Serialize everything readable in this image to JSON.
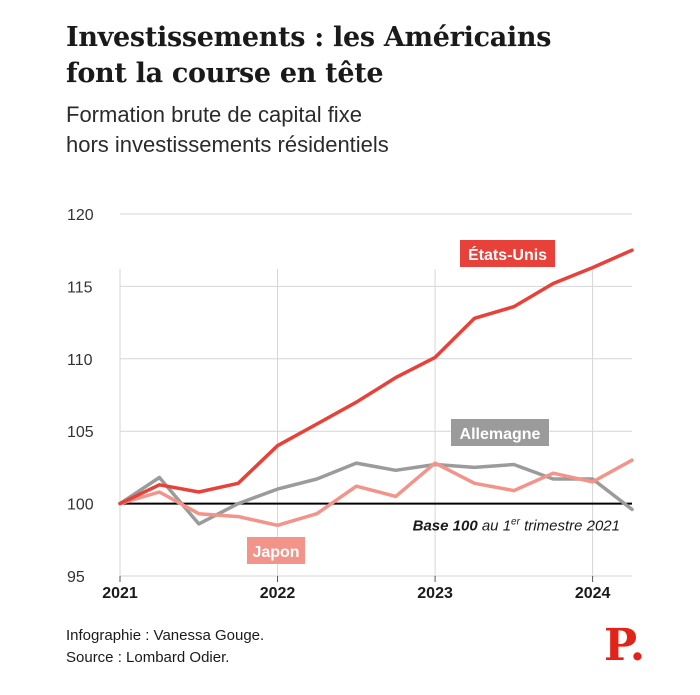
{
  "header": {
    "title_line1": "Investissements : les Américains",
    "title_line2": "font la course en tête",
    "subtitle_line1": "Formation brute de capital fixe",
    "subtitle_line2": "hors investissements résidentiels"
  },
  "footer": {
    "credit": "Infographie : Vanessa Gouge.",
    "source": "Source : Lombard Odier."
  },
  "logo": {
    "text": "P."
  },
  "colors": {
    "us": "#e8413a",
    "germany": "#9b9b9b",
    "japan": "#f2948a",
    "grid": "#d6d6d6",
    "baseline": "#000000",
    "brand": "#e2231a"
  },
  "chart_data": {
    "type": "line",
    "title": "",
    "xlabel": "",
    "ylabel": "",
    "ylim": [
      95,
      120
    ],
    "xlim": [
      2021,
      2024.25
    ],
    "grid": true,
    "y_ticks": [
      "95",
      "100",
      "105",
      "110",
      "115",
      "120"
    ],
    "x_ticks": [
      "2021",
      "2022",
      "2023",
      "2024"
    ],
    "x": [
      2021.0,
      2021.25,
      2021.5,
      2021.75,
      2022.0,
      2022.25,
      2022.5,
      2022.75,
      2023.0,
      2023.25,
      2023.5,
      2023.75,
      2024.0,
      2024.25
    ],
    "series": [
      {
        "name": "États-Unis",
        "key": "us",
        "values": [
          100.0,
          101.3,
          100.8,
          101.4,
          104.0,
          105.5,
          107.0,
          108.7,
          110.1,
          112.8,
          113.6,
          115.2,
          116.3,
          117.5
        ]
      },
      {
        "name": "Allemagne",
        "key": "germany",
        "values": [
          100.0,
          101.8,
          98.6,
          100.0,
          101.0,
          101.7,
          102.8,
          102.3,
          102.7,
          102.5,
          102.7,
          101.7,
          101.7,
          99.6
        ]
      },
      {
        "name": "Japon",
        "key": "japan",
        "values": [
          100.0,
          100.8,
          99.3,
          99.1,
          98.5,
          99.3,
          101.2,
          100.5,
          102.8,
          101.4,
          100.9,
          102.1,
          101.5,
          103.0
        ]
      }
    ],
    "annotation": {
      "bold": "Base 100",
      "text_before_sup": " au 1",
      "sup": "er",
      "text_after_sup": " trimestre 2021",
      "y": 100
    }
  }
}
